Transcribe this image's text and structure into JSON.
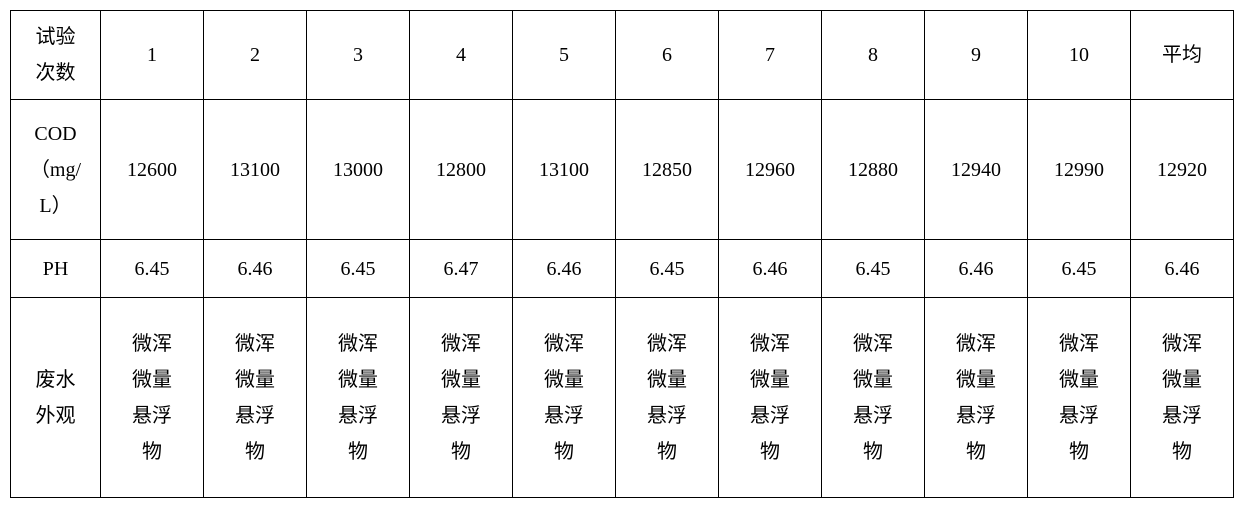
{
  "table": {
    "type": "table",
    "background_color": "#ffffff",
    "border_color": "#000000",
    "text_color": "#000000",
    "font_size_pt": 15,
    "font_family": "SimSun",
    "columns": 12,
    "header": {
      "label_line1": "试验",
      "label_line2": "次数",
      "col1": "1",
      "col2": "2",
      "col3": "3",
      "col4": "4",
      "col5": "5",
      "col6": "6",
      "col7": "7",
      "col8": "8",
      "col9": "9",
      "col10": "10",
      "avg_label": "平均"
    },
    "cod": {
      "label_line1": "COD",
      "label_line2": "（mg/",
      "label_line3": "L）",
      "v1": "12600",
      "v2": "13100",
      "v3": "13000",
      "v4": "12800",
      "v5": "13100",
      "v6": "12850",
      "v7": "12960",
      "v8": "12880",
      "v9": "12940",
      "v10": "12990",
      "avg": "12920"
    },
    "ph": {
      "label": "PH",
      "v1": "6.45",
      "v2": "6.46",
      "v3": "6.45",
      "v4": "6.47",
      "v5": "6.46",
      "v6": "6.45",
      "v7": "6.46",
      "v8": "6.45",
      "v9": "6.46",
      "v10": "6.45",
      "avg": "6.46"
    },
    "appearance": {
      "label_line1": "废水",
      "label_line2": "外观",
      "value_line1": "微浑",
      "value_line2": "微量",
      "value_line3": "悬浮",
      "value_line4": "物"
    }
  }
}
